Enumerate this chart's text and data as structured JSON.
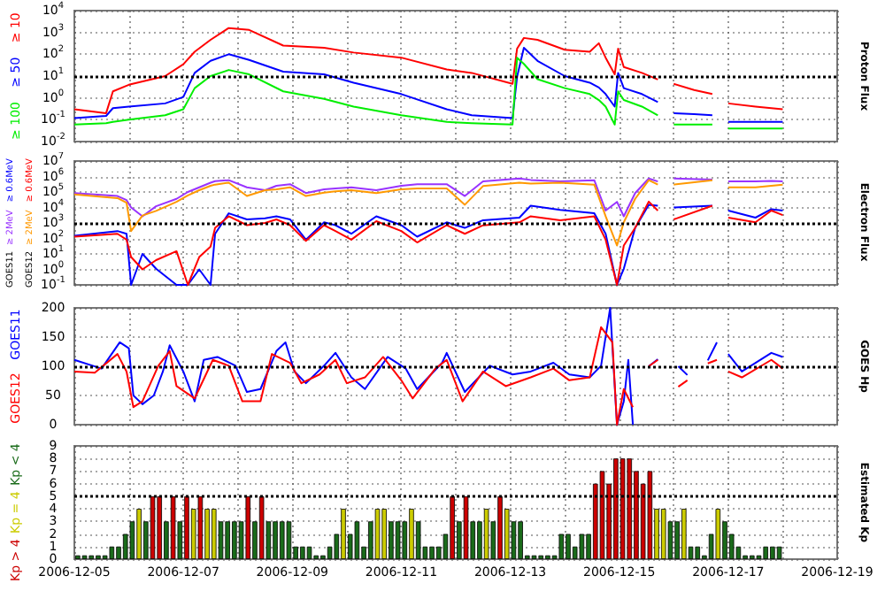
{
  "chart_data": [
    {
      "type": "line",
      "ylabel": "Proton Flux",
      "log": true,
      "grid": true,
      "xlim": [
        "2006-12-05",
        "2006-12-19"
      ],
      "xticks": [
        "2006-12-05",
        {
          "value": "2006-12-06",
          "label": null
        },
        "2006-12-07",
        {
          "value": "2006-12-08",
          "label": null
        },
        "2006-12-09",
        {
          "value": "2006-12-10",
          "label": null
        },
        "2006-12-11",
        {
          "value": "2006-12-12",
          "label": null
        },
        "2006-12-13",
        {
          "value": "2006-12-14",
          "label": null
        },
        "2006-12-15",
        {
          "value": "2006-12-16",
          "label": null
        },
        "2006-12-17",
        {
          "value": "2006-12-18",
          "label": null
        },
        "2006-12-19"
      ],
      "ylim": [
        0.01,
        10000
      ],
      "yticks": [
        {
          "value": 0.01,
          "label": "10$^{-2}$"
        },
        {
          "value": 0.1,
          "label": "10$^{-1}$"
        },
        {
          "value": 1,
          "label": "10$^{0}$"
        },
        {
          "value": 10,
          "label": "10$^{1}$"
        },
        {
          "value": 100,
          "label": "10$^{2}$"
        },
        {
          "value": 1000,
          "label": "10$^{3}$"
        },
        {
          "value": 10000,
          "label": "10$^{4}$"
        }
      ],
      "tick_labels": "y",
      "ref_lines": [
        {
          "axis": "y",
          "value": 10
        }
      ],
      "x": [
        "2006-12-05T00:00",
        "2006-12-05T14:00",
        "2006-12-05T17:00",
        "2006-12-06T00:00",
        "2006-12-06T16:00",
        "2006-12-07T00:00",
        "2006-12-07T05:00",
        "2006-12-07T12:00",
        "2006-12-07T20:00",
        "2006-12-08T05:00",
        "2006-12-08T20:00",
        "2006-12-09T14:00",
        "2006-12-10T03:00",
        "2006-12-11T00:00",
        "2006-12-11T20:00",
        "2006-12-12T07:00",
        "2006-12-13T01:00",
        "2006-12-13T03:00",
        "2006-12-13T06:00",
        "2006-12-13T12:00",
        "2006-12-14T00:00",
        "2006-12-14T11:00",
        "2006-12-14T15:00",
        "2006-12-14T18:00",
        "2006-12-14T22:00",
        "2006-12-14T23:30",
        "2006-12-15T02:00",
        "2006-12-15T10:00",
        "2006-12-15T17:00",
        "2006-12-15T20:00",
        "2006-12-16T00:00",
        "2006-12-16T09:00",
        "2006-12-16T17:00",
        "2006-12-16T20:00",
        "2006-12-17T00:00",
        "2006-12-17T12:00",
        "2006-12-18T00:00"
      ],
      "series": [
        {
          "name": "≥ 10",
          "color": "#ff0000",
          "values": [
            0.3,
            0.2,
            2,
            4,
            10,
            35,
            130,
            460,
            1600,
            1300,
            250,
            200,
            120,
            70,
            20,
            14,
            4.4,
            180,
            560,
            460,
            160,
            130,
            320,
            70,
            12,
            180,
            26,
            14,
            7,
            null,
            4.4,
            2.3,
            1.5,
            null,
            0.56,
            0.4,
            0.3
          ]
        },
        {
          "name": "≥ 50",
          "color": "#0000ff",
          "values": [
            0.12,
            0.15,
            0.34,
            0.4,
            0.56,
            1.1,
            14,
            50,
            100,
            55,
            16,
            12,
            5,
            1.5,
            0.3,
            0.16,
            0.12,
            9.3,
            200,
            50,
            10,
            5,
            3,
            1.5,
            0.4,
            14,
            2.8,
            1.5,
            0.64,
            null,
            0.2,
            0.18,
            0.16,
            null,
            0.08,
            0.08,
            0.08
          ]
        },
        {
          "name": "≥ 100",
          "color": "#00ee00",
          "values": [
            0.06,
            0.07,
            0.08,
            0.1,
            0.16,
            0.3,
            2.8,
            10,
            19,
            12,
            2,
            0.9,
            0.4,
            0.16,
            0.08,
            0.07,
            0.06,
            70,
            36,
            7.2,
            2.8,
            1.5,
            0.8,
            0.4,
            0.06,
            2,
            0.8,
            0.4,
            0.16,
            null,
            0.06,
            0.06,
            0.06,
            null,
            0.04,
            0.04,
            0.04
          ]
        }
      ]
    },
    {
      "type": "line",
      "ylabel": "Electron Flux",
      "log": true,
      "grid": true,
      "xlim": [
        "2006-12-05",
        "2006-12-19"
      ],
      "xticks": [
        "2006-12-05",
        {
          "value": "2006-12-06",
          "label": null
        },
        "2006-12-07",
        {
          "value": "2006-12-08",
          "label": null
        },
        "2006-12-09",
        {
          "value": "2006-12-10",
          "label": null
        },
        "2006-12-11",
        {
          "value": "2006-12-12",
          "label": null
        },
        "2006-12-13",
        {
          "value": "2006-12-14",
          "label": null
        },
        "2006-12-15",
        {
          "value": "2006-12-16",
          "label": null
        },
        "2006-12-17",
        {
          "value": "2006-12-18",
          "label": null
        },
        "2006-12-19"
      ],
      "ylim": [
        0.1,
        10000000
      ],
      "yticks": [
        {
          "value": 0.1,
          "label": "10$^{-1}$"
        },
        {
          "value": 1,
          "label": "10$^{0}$"
        },
        {
          "value": 10,
          "label": "10$^{1}$"
        },
        {
          "value": 100,
          "label": "10$^{2}$"
        },
        {
          "value": 1000,
          "label": "10$^{3}$"
        },
        {
          "value": 10000,
          "label": "10$^{4}$"
        },
        {
          "value": 100000,
          "label": "10$^{5}$"
        },
        {
          "value": 1000000,
          "label": "10$^{6}$"
        },
        {
          "value": 10000000,
          "label": "10$^{7}$"
        }
      ],
      "tick_labels": "y",
      "ref_lines": [
        {
          "axis": "y",
          "value": 1000
        }
      ],
      "annotations": [
        "GOES11",
        "GOES12"
      ],
      "x": [
        "2006-12-05T00:00",
        "2006-12-05T19:00",
        "2006-12-05T23:00",
        "2006-12-06T01:00",
        "2006-12-06T06:00",
        "2006-12-06T12:00",
        "2006-12-06T21:00",
        "2006-12-07T02:00",
        "2006-12-07T07:00",
        "2006-12-07T12:00",
        "2006-12-07T14:00",
        "2006-12-07T20:00",
        "2006-12-08T04:00",
        "2006-12-08T12:00",
        "2006-12-08T17:00",
        "2006-12-08T23:00",
        "2006-12-09T06:00",
        "2006-12-09T14:00",
        "2006-12-09T19:00",
        "2006-12-10T02:00",
        "2006-12-10T13:00",
        "2006-12-11T00:00",
        "2006-12-11T07:00",
        "2006-12-11T20:00",
        "2006-12-12T04:00",
        "2006-12-12T12:00",
        "2006-12-13T04:00",
        "2006-12-13T09:00",
        "2006-12-13T22:00",
        "2006-12-14T13:00",
        "2006-12-14T18:00",
        "2006-12-14T23:00",
        "2006-12-15T02:00",
        "2006-12-15T07:00",
        "2006-12-15T13:00",
        "2006-12-15T17:00",
        "2006-12-15T20:00",
        "2006-12-16T00:00",
        "2006-12-16T17:00",
        "2006-12-16T20:00",
        "2006-12-17T00:00",
        "2006-12-17T12:00",
        "2006-12-17T19:00",
        "2006-12-18T00:00"
      ],
      "series": [
        {
          "name": "≥ 0.6MeV",
          "color": "#0000ff",
          "values": [
            150,
            300,
            200,
            0.1,
            10,
            1.1,
            0.1,
            0.1,
            1,
            0.1,
            200,
            4200,
            1700,
            2000,
            2700,
            1700,
            83,
            1100,
            720,
            200,
            2700,
            720,
            130,
            1100,
            480,
            1500,
            2200,
            13000,
            7000,
            4200,
            200,
            0.1,
            1.1,
            480,
            15000,
            13000,
            null,
            10000,
            13000,
            null,
            6300,
            2200,
            7700,
            6300
          ]
        },
        {
          "name": "≥ 2MeV",
          "color": "#9933ff",
          "values": [
            85000,
            55000,
            30000,
            10000,
            2700,
            12000,
            36000,
            100000,
            200000,
            400000,
            500000,
            580000,
            200000,
            130000,
            250000,
            320000,
            85000,
            150000,
            170000,
            200000,
            130000,
            250000,
            320000,
            320000,
            55000,
            480000,
            740000,
            600000,
            480000,
            580000,
            6300,
            23000,
            2700,
            85000,
            740000,
            480000,
            null,
            740000,
            630000,
            null,
            480000,
            480000,
            520000,
            480000
          ]
        },
        {
          "name": "≥ 0.6MeV",
          "color": "#ff0000",
          "values": [
            130,
            200,
            83,
            6.3,
            1,
            4,
            15,
            0.1,
            6.3,
            30,
            480,
            2700,
            720,
            1000,
            1700,
            720,
            70,
            720,
            300,
            83,
            1300,
            300,
            55,
            720,
            200,
            700,
            1100,
            2700,
            1500,
            2700,
            83,
            0.1,
            35,
            480,
            24000,
            6300,
            null,
            1700,
            13000,
            null,
            2200,
            1100,
            6300,
            3200
          ]
        },
        {
          "name": "≥ 2MeV",
          "color": "#ff9900",
          "values": [
            70000,
            40000,
            20000,
            300,
            3000,
            6000,
            23000,
            60000,
            130000,
            250000,
            300000,
            400000,
            55000,
            130000,
            150000,
            200000,
            55000,
            90000,
            110000,
            130000,
            85000,
            150000,
            170000,
            170000,
            15000,
            240000,
            400000,
            350000,
            400000,
            300000,
            2700,
            35,
            1100,
            36000,
            580000,
            300000,
            null,
            300000,
            580000,
            null,
            200000,
            200000,
            250000,
            300000
          ]
        }
      ]
    },
    {
      "type": "line",
      "ylabel": "GOES Hp",
      "grid": true,
      "xlim": [
        "2006-12-05",
        "2006-12-19"
      ],
      "xticks": [
        "2006-12-05",
        {
          "value": "2006-12-06",
          "label": null
        },
        "2006-12-07",
        {
          "value": "2006-12-08",
          "label": null
        },
        "2006-12-09",
        {
          "value": "2006-12-10",
          "label": null
        },
        "2006-12-11",
        {
          "value": "2006-12-12",
          "label": null
        },
        "2006-12-13",
        {
          "value": "2006-12-14",
          "label": null
        },
        "2006-12-15",
        {
          "value": "2006-12-16",
          "label": null
        },
        "2006-12-17",
        {
          "value": "2006-12-18",
          "label": null
        },
        "2006-12-19"
      ],
      "ylim": [
        0,
        200
      ],
      "yticks": [
        0,
        50,
        100,
        150,
        200
      ],
      "tick_labels": "y",
      "ref_lines": [
        {
          "axis": "y",
          "value": 100
        }
      ],
      "series": [
        {
          "name": "GOES11",
          "color": "#0000ff",
          "x": [
            "2006-12-05T00:00",
            "2006-12-05T12:00",
            "2006-12-05T20:00",
            "2006-12-06T00:00",
            "2006-12-06T02:00",
            "2006-12-06T06:00",
            "2006-12-06T11:00",
            "2006-12-06T15:00",
            "2006-12-06T18:00",
            "2006-12-07T00:00",
            "2006-12-07T05:00",
            "2006-12-07T09:00",
            "2006-12-07T15:00",
            "2006-12-07T23:00",
            "2006-12-08T04:00",
            "2006-12-08T10:00",
            "2006-12-08T17:00",
            "2006-12-08T21:00",
            "2006-12-09T01:00",
            "2006-12-09T06:00",
            "2006-12-09T14:00",
            "2006-12-09T19:00",
            "2006-12-10T02:00",
            "2006-12-10T08:00",
            "2006-12-10T18:00",
            "2006-12-11T02:00",
            "2006-12-11T07:00",
            "2006-12-11T18:00",
            "2006-12-11T20:00",
            "2006-12-12T04:00",
            "2006-12-12T15:00",
            "2006-12-13T01:00",
            "2006-12-13T09:00",
            "2006-12-13T19:00",
            "2006-12-14T02:00",
            "2006-12-14T11:00",
            "2006-12-14T16:00",
            "2006-12-14T20:00",
            "2006-12-14T23:00",
            "2006-12-15T02:00",
            "2006-12-15T04:00",
            "2006-12-15T06:00",
            "2006-12-15T10:00",
            "2006-12-15T13:00",
            "2006-12-15T17:00",
            "2006-12-15T20:00",
            "2006-12-16T02:00",
            "2006-12-16T06:00",
            "2006-12-16T10:00",
            "2006-12-16T15:00",
            "2006-12-16T19:00",
            "2006-12-16T20:00",
            "2006-12-17T00:00",
            "2006-12-17T06:00",
            "2006-12-17T19:00",
            "2006-12-18T00:00"
          ],
          "values": [
            111,
            96,
            141,
            131,
            50,
            35,
            50,
            91,
            136,
            91,
            40,
            111,
            116,
            101,
            56,
            61,
            126,
            141,
            91,
            71,
            101,
            123,
            81,
            61,
            116,
            96,
            61,
            106,
            123,
            56,
            101,
            86,
            91,
            106,
            86,
            81,
            101,
            200,
            0,
            40,
            111,
            0,
            null,
            100,
            112,
            null,
            100,
            85,
            null,
            110,
            141,
            null,
            121,
            91,
            123,
            116
          ]
        },
        {
          "name": "GOES12",
          "color": "#ff0000",
          "x": [
            "2006-12-05T00:00",
            "2006-12-05T09:00",
            "2006-12-05T19:00",
            "2006-12-05T23:00",
            "2006-12-06T02:00",
            "2006-12-06T06:00",
            "2006-12-06T13:00",
            "2006-12-06T18:00",
            "2006-12-06T21:00",
            "2006-12-07T05:00",
            "2006-12-07T13:00",
            "2006-12-07T20:00",
            "2006-12-08T02:00",
            "2006-12-08T10:00",
            "2006-12-08T15:00",
            "2006-12-08T23:00",
            "2006-12-09T04:00",
            "2006-12-09T12:00",
            "2006-12-09T19:00",
            "2006-12-10T00:00",
            "2006-12-10T08:00",
            "2006-12-10T16:00",
            "2006-12-11T00:00",
            "2006-12-11T05:00",
            "2006-12-11T15:00",
            "2006-12-11T20:00",
            "2006-12-12T03:00",
            "2006-12-12T12:00",
            "2006-12-12T22:00",
            "2006-12-13T09:00",
            "2006-12-13T19:00",
            "2006-12-14T02:00",
            "2006-12-14T11:00",
            "2006-12-14T16:00",
            "2006-12-14T21:00",
            "2006-12-14T23:00",
            "2006-12-15T02:00",
            "2006-12-15T06:00",
            "2006-12-15T10:00",
            "2006-12-15T13:00",
            "2006-12-15T17:00",
            "2006-12-15T20:00",
            "2006-12-16T02:00",
            "2006-12-16T06:00",
            "2006-12-16T10:00",
            "2006-12-16T15:00",
            "2006-12-16T19:00",
            "2006-12-16T20:00",
            "2006-12-17T00:00",
            "2006-12-17T06:00",
            "2006-12-17T19:00",
            "2006-12-18T00:00"
          ],
          "values": [
            91,
            89,
            121,
            91,
            30,
            40,
            101,
            126,
            66,
            45,
            111,
            101,
            40,
            40,
            121,
            106,
            71,
            86,
            111,
            71,
            81,
            116,
            76,
            45,
            96,
            111,
            40,
            91,
            66,
            81,
            96,
            76,
            81,
            167,
            141,
            0,
            61,
            30,
            null,
            100,
            111,
            null,
            65,
            76,
            null,
            105,
            111,
            null,
            91,
            81,
            111,
            96
          ]
        }
      ]
    },
    {
      "type": "bar",
      "ylabel": "Estimated Kp",
      "grid": true,
      "xlim": [
        "2006-12-05",
        "2006-12-19"
      ],
      "xticks": [
        "2006-12-05",
        {
          "value": "2006-12-06",
          "label": null
        },
        "2006-12-07",
        {
          "value": "2006-12-08",
          "label": null
        },
        "2006-12-09",
        {
          "value": "2006-12-10",
          "label": null
        },
        "2006-12-11",
        {
          "value": "2006-12-12",
          "label": null
        },
        "2006-12-13",
        {
          "value": "2006-12-14",
          "label": null
        },
        "2006-12-15",
        {
          "value": "2006-12-16",
          "label": null
        },
        "2006-12-17",
        {
          "value": "2006-12-18",
          "label": null
        },
        "2006-12-19"
      ],
      "ylim": [
        0,
        9
      ],
      "yticks": [
        0,
        1,
        2,
        3,
        4,
        5,
        6,
        7,
        8,
        9
      ],
      "ref_lines": [
        {
          "axis": "y",
          "value": 5
        }
      ],
      "x": [
        "2006-12-05T01:30",
        "2006-12-05T04:30",
        "2006-12-05T07:30",
        "2006-12-05T10:30",
        "2006-12-05T13:30",
        "2006-12-05T16:30",
        "2006-12-05T19:30",
        "2006-12-05T22:30",
        "2006-12-06T01:30",
        "2006-12-06T04:30",
        "2006-12-06T07:30",
        "2006-12-06T10:30",
        "2006-12-06T13:30",
        "2006-12-06T16:30",
        "2006-12-06T19:30",
        "2006-12-06T22:30",
        "2006-12-07T01:30",
        "2006-12-07T04:30",
        "2006-12-07T07:30",
        "2006-12-07T10:30",
        "2006-12-07T13:30",
        "2006-12-07T16:30",
        "2006-12-07T19:30",
        "2006-12-07T22:30",
        "2006-12-08T01:30",
        "2006-12-08T04:30",
        "2006-12-08T07:30",
        "2006-12-08T10:30",
        "2006-12-08T13:30",
        "2006-12-08T16:30",
        "2006-12-08T19:30",
        "2006-12-08T22:30",
        "2006-12-09T01:30",
        "2006-12-09T04:30",
        "2006-12-09T07:30",
        "2006-12-09T10:30",
        "2006-12-09T13:30",
        "2006-12-09T16:30",
        "2006-12-09T19:30",
        "2006-12-09T22:30",
        "2006-12-10T01:30",
        "2006-12-10T04:30",
        "2006-12-10T07:30",
        "2006-12-10T10:30",
        "2006-12-10T13:30",
        "2006-12-10T16:30",
        "2006-12-10T19:30",
        "2006-12-10T22:30",
        "2006-12-11T01:30",
        "2006-12-11T04:30",
        "2006-12-11T07:30",
        "2006-12-11T10:30",
        "2006-12-11T13:30",
        "2006-12-11T16:30",
        "2006-12-11T19:30",
        "2006-12-11T22:30",
        "2006-12-12T01:30",
        "2006-12-12T04:30",
        "2006-12-12T07:30",
        "2006-12-12T10:30",
        "2006-12-12T13:30",
        "2006-12-12T16:30",
        "2006-12-12T19:30",
        "2006-12-12T22:30",
        "2006-12-13T01:30",
        "2006-12-13T04:30",
        "2006-12-13T07:30",
        "2006-12-13T10:30",
        "2006-12-13T13:30",
        "2006-12-13T16:30",
        "2006-12-13T19:30",
        "2006-12-13T22:30",
        "2006-12-14T01:30",
        "2006-12-14T04:30",
        "2006-12-14T07:30",
        "2006-12-14T10:30",
        "2006-12-14T13:30",
        "2006-12-14T16:30",
        "2006-12-14T19:30",
        "2006-12-14T22:30",
        "2006-12-15T01:30",
        "2006-12-15T04:30",
        "2006-12-15T07:30",
        "2006-12-15T10:30",
        "2006-12-15T13:30",
        "2006-12-15T16:30",
        "2006-12-15T19:30",
        "2006-12-15T22:30",
        "2006-12-16T01:30",
        "2006-12-16T04:30",
        "2006-12-16T07:30",
        "2006-12-16T10:30",
        "2006-12-16T13:30",
        "2006-12-16T16:30",
        "2006-12-16T19:30",
        "2006-12-16T22:30",
        "2006-12-17T01:30",
        "2006-12-17T04:30",
        "2006-12-17T07:30",
        "2006-12-17T10:30",
        "2006-12-17T13:30",
        "2006-12-17T16:30",
        "2006-12-17T19:30",
        "2006-12-17T22:30"
      ],
      "series": [
        {
          "name": "Kp < 4",
          "color": "#1a6b1a",
          "values": [
            0.3,
            0.3,
            0.3,
            0.3,
            0.3,
            1,
            1,
            2,
            3,
            null,
            3,
            null,
            null,
            3,
            null,
            3,
            null,
            null,
            null,
            null,
            null,
            3,
            3,
            3,
            3,
            null,
            3,
            null,
            3,
            3,
            3,
            3,
            1,
            1,
            1,
            0.3,
            0.3,
            1,
            2,
            null,
            2,
            3,
            1,
            3,
            null,
            null,
            3,
            3,
            3,
            null,
            3,
            1,
            1,
            1,
            2,
            null,
            3,
            null,
            3,
            3,
            null,
            3,
            null,
            null,
            3,
            3,
            0.3,
            0.3,
            0.3,
            0.3,
            0.3,
            2,
            2,
            1,
            2,
            2,
            null,
            null,
            null,
            null,
            null,
            null,
            null,
            null,
            null,
            null,
            null,
            3,
            3,
            null,
            1,
            1,
            0.3,
            2,
            null,
            3,
            2,
            1,
            0.3,
            0.3,
            0.3,
            1,
            1,
            1
          ]
        },
        {
          "name": "Kp = 4",
          "color": "#cccc00",
          "values": [
            null,
            null,
            null,
            null,
            null,
            null,
            null,
            null,
            null,
            4,
            null,
            null,
            null,
            null,
            null,
            null,
            null,
            4,
            null,
            4,
            4,
            null,
            null,
            null,
            null,
            null,
            null,
            null,
            null,
            null,
            null,
            null,
            null,
            null,
            null,
            null,
            null,
            null,
            null,
            4,
            null,
            null,
            null,
            null,
            4,
            4,
            null,
            null,
            null,
            4,
            null,
            null,
            null,
            null,
            null,
            null,
            null,
            null,
            null,
            null,
            4,
            null,
            null,
            4,
            null,
            null,
            null,
            null,
            null,
            null,
            null,
            null,
            null,
            null,
            null,
            null,
            null,
            null,
            null,
            null,
            null,
            null,
            null,
            null,
            null,
            4,
            4,
            null,
            null,
            4,
            null,
            null,
            null,
            null,
            4,
            null,
            null,
            null,
            null,
            null,
            null,
            null,
            null,
            null
          ]
        },
        {
          "name": "Kp > 4",
          "color": "#cc0000",
          "values": [
            null,
            null,
            null,
            null,
            null,
            null,
            null,
            null,
            null,
            null,
            null,
            5,
            5,
            null,
            5,
            null,
            5,
            null,
            5,
            null,
            null,
            null,
            null,
            null,
            null,
            5,
            null,
            5,
            null,
            null,
            null,
            null,
            null,
            null,
            null,
            null,
            null,
            null,
            null,
            null,
            null,
            null,
            null,
            null,
            null,
            null,
            null,
            null,
            null,
            null,
            null,
            null,
            null,
            null,
            null,
            5,
            null,
            5,
            null,
            null,
            null,
            null,
            5,
            null,
            null,
            null,
            null,
            null,
            null,
            null,
            null,
            null,
            null,
            null,
            null,
            null,
            6,
            7,
            6,
            8,
            8,
            8,
            7,
            6,
            7,
            null,
            null,
            null,
            null,
            null,
            null,
            null,
            null,
            null,
            null,
            null,
            null,
            null,
            null,
            null,
            null,
            null,
            null,
            null
          ]
        }
      ]
    }
  ]
}
